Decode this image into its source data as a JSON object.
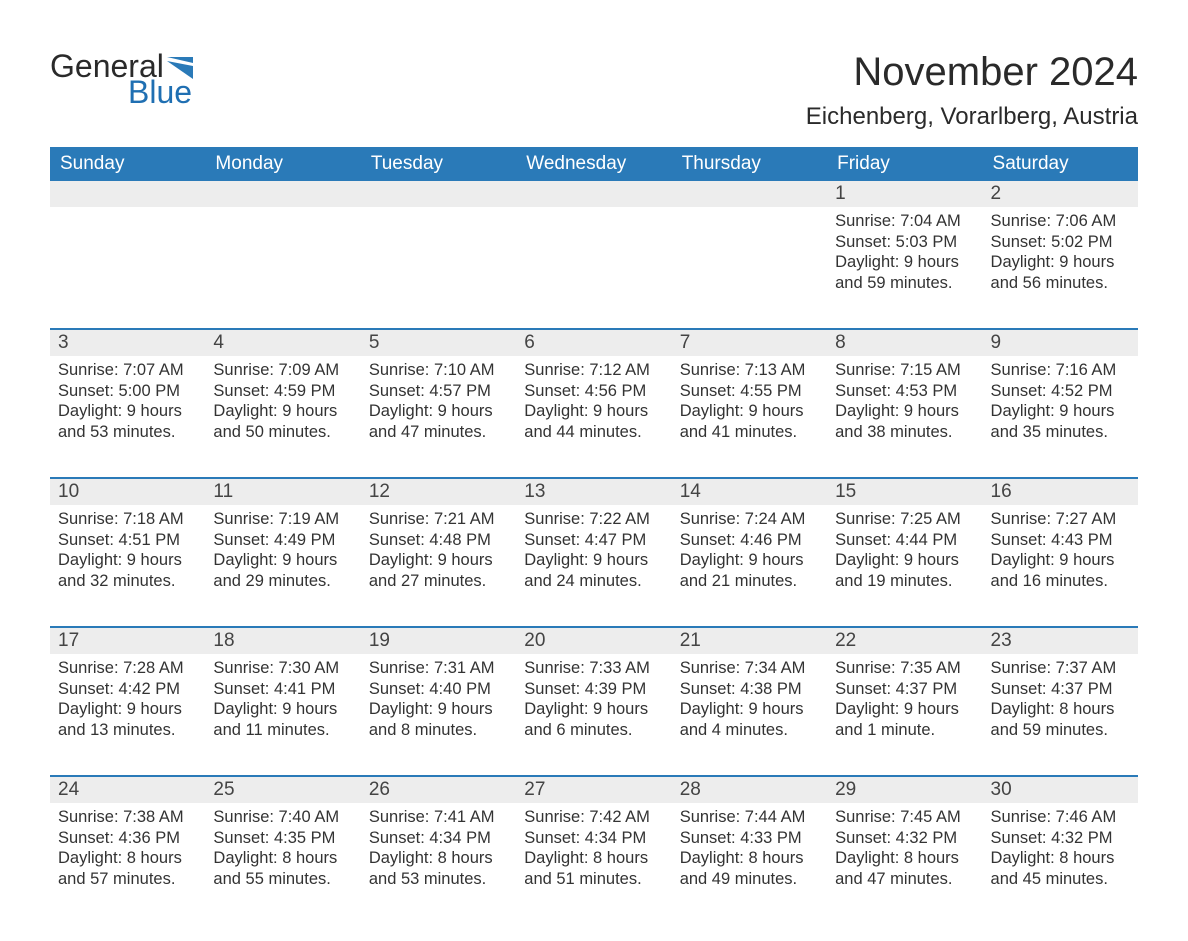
{
  "brand": {
    "line1": "General",
    "line2": "Blue",
    "flag_color": "#2a7ab8"
  },
  "title": "November 2024",
  "location": "Eichenberg, Vorarlberg, Austria",
  "colors": {
    "header_bg": "#2a7ab8",
    "header_text": "#ffffff",
    "daynum_bg": "#ededed",
    "week_border": "#2a7ab8",
    "body_text": "#333333",
    "page_bg": "#ffffff"
  },
  "typography": {
    "month_title_fontsize": 40,
    "location_fontsize": 24,
    "dayhead_fontsize": 19,
    "daynum_fontsize": 19,
    "body_fontsize": 16.5
  },
  "day_headers": [
    "Sunday",
    "Monday",
    "Tuesday",
    "Wednesday",
    "Thursday",
    "Friday",
    "Saturday"
  ],
  "weeks": [
    [
      null,
      null,
      null,
      null,
      null,
      {
        "n": "1",
        "sr": "Sunrise: 7:04 AM",
        "ss": "Sunset: 5:03 PM",
        "d1": "Daylight: 9 hours",
        "d2": "and 59 minutes."
      },
      {
        "n": "2",
        "sr": "Sunrise: 7:06 AM",
        "ss": "Sunset: 5:02 PM",
        "d1": "Daylight: 9 hours",
        "d2": "and 56 minutes."
      }
    ],
    [
      {
        "n": "3",
        "sr": "Sunrise: 7:07 AM",
        "ss": "Sunset: 5:00 PM",
        "d1": "Daylight: 9 hours",
        "d2": "and 53 minutes."
      },
      {
        "n": "4",
        "sr": "Sunrise: 7:09 AM",
        "ss": "Sunset: 4:59 PM",
        "d1": "Daylight: 9 hours",
        "d2": "and 50 minutes."
      },
      {
        "n": "5",
        "sr": "Sunrise: 7:10 AM",
        "ss": "Sunset: 4:57 PM",
        "d1": "Daylight: 9 hours",
        "d2": "and 47 minutes."
      },
      {
        "n": "6",
        "sr": "Sunrise: 7:12 AM",
        "ss": "Sunset: 4:56 PM",
        "d1": "Daylight: 9 hours",
        "d2": "and 44 minutes."
      },
      {
        "n": "7",
        "sr": "Sunrise: 7:13 AM",
        "ss": "Sunset: 4:55 PM",
        "d1": "Daylight: 9 hours",
        "d2": "and 41 minutes."
      },
      {
        "n": "8",
        "sr": "Sunrise: 7:15 AM",
        "ss": "Sunset: 4:53 PM",
        "d1": "Daylight: 9 hours",
        "d2": "and 38 minutes."
      },
      {
        "n": "9",
        "sr": "Sunrise: 7:16 AM",
        "ss": "Sunset: 4:52 PM",
        "d1": "Daylight: 9 hours",
        "d2": "and 35 minutes."
      }
    ],
    [
      {
        "n": "10",
        "sr": "Sunrise: 7:18 AM",
        "ss": "Sunset: 4:51 PM",
        "d1": "Daylight: 9 hours",
        "d2": "and 32 minutes."
      },
      {
        "n": "11",
        "sr": "Sunrise: 7:19 AM",
        "ss": "Sunset: 4:49 PM",
        "d1": "Daylight: 9 hours",
        "d2": "and 29 minutes."
      },
      {
        "n": "12",
        "sr": "Sunrise: 7:21 AM",
        "ss": "Sunset: 4:48 PM",
        "d1": "Daylight: 9 hours",
        "d2": "and 27 minutes."
      },
      {
        "n": "13",
        "sr": "Sunrise: 7:22 AM",
        "ss": "Sunset: 4:47 PM",
        "d1": "Daylight: 9 hours",
        "d2": "and 24 minutes."
      },
      {
        "n": "14",
        "sr": "Sunrise: 7:24 AM",
        "ss": "Sunset: 4:46 PM",
        "d1": "Daylight: 9 hours",
        "d2": "and 21 minutes."
      },
      {
        "n": "15",
        "sr": "Sunrise: 7:25 AM",
        "ss": "Sunset: 4:44 PM",
        "d1": "Daylight: 9 hours",
        "d2": "and 19 minutes."
      },
      {
        "n": "16",
        "sr": "Sunrise: 7:27 AM",
        "ss": "Sunset: 4:43 PM",
        "d1": "Daylight: 9 hours",
        "d2": "and 16 minutes."
      }
    ],
    [
      {
        "n": "17",
        "sr": "Sunrise: 7:28 AM",
        "ss": "Sunset: 4:42 PM",
        "d1": "Daylight: 9 hours",
        "d2": "and 13 minutes."
      },
      {
        "n": "18",
        "sr": "Sunrise: 7:30 AM",
        "ss": "Sunset: 4:41 PM",
        "d1": "Daylight: 9 hours",
        "d2": "and 11 minutes."
      },
      {
        "n": "19",
        "sr": "Sunrise: 7:31 AM",
        "ss": "Sunset: 4:40 PM",
        "d1": "Daylight: 9 hours",
        "d2": "and 8 minutes."
      },
      {
        "n": "20",
        "sr": "Sunrise: 7:33 AM",
        "ss": "Sunset: 4:39 PM",
        "d1": "Daylight: 9 hours",
        "d2": "and 6 minutes."
      },
      {
        "n": "21",
        "sr": "Sunrise: 7:34 AM",
        "ss": "Sunset: 4:38 PM",
        "d1": "Daylight: 9 hours",
        "d2": "and 4 minutes."
      },
      {
        "n": "22",
        "sr": "Sunrise: 7:35 AM",
        "ss": "Sunset: 4:37 PM",
        "d1": "Daylight: 9 hours",
        "d2": "and 1 minute."
      },
      {
        "n": "23",
        "sr": "Sunrise: 7:37 AM",
        "ss": "Sunset: 4:37 PM",
        "d1": "Daylight: 8 hours",
        "d2": "and 59 minutes."
      }
    ],
    [
      {
        "n": "24",
        "sr": "Sunrise: 7:38 AM",
        "ss": "Sunset: 4:36 PM",
        "d1": "Daylight: 8 hours",
        "d2": "and 57 minutes."
      },
      {
        "n": "25",
        "sr": "Sunrise: 7:40 AM",
        "ss": "Sunset: 4:35 PM",
        "d1": "Daylight: 8 hours",
        "d2": "and 55 minutes."
      },
      {
        "n": "26",
        "sr": "Sunrise: 7:41 AM",
        "ss": "Sunset: 4:34 PM",
        "d1": "Daylight: 8 hours",
        "d2": "and 53 minutes."
      },
      {
        "n": "27",
        "sr": "Sunrise: 7:42 AM",
        "ss": "Sunset: 4:34 PM",
        "d1": "Daylight: 8 hours",
        "d2": "and 51 minutes."
      },
      {
        "n": "28",
        "sr": "Sunrise: 7:44 AM",
        "ss": "Sunset: 4:33 PM",
        "d1": "Daylight: 8 hours",
        "d2": "and 49 minutes."
      },
      {
        "n": "29",
        "sr": "Sunrise: 7:45 AM",
        "ss": "Sunset: 4:32 PM",
        "d1": "Daylight: 8 hours",
        "d2": "and 47 minutes."
      },
      {
        "n": "30",
        "sr": "Sunrise: 7:46 AM",
        "ss": "Sunset: 4:32 PM",
        "d1": "Daylight: 8 hours",
        "d2": "and 45 minutes."
      }
    ]
  ]
}
